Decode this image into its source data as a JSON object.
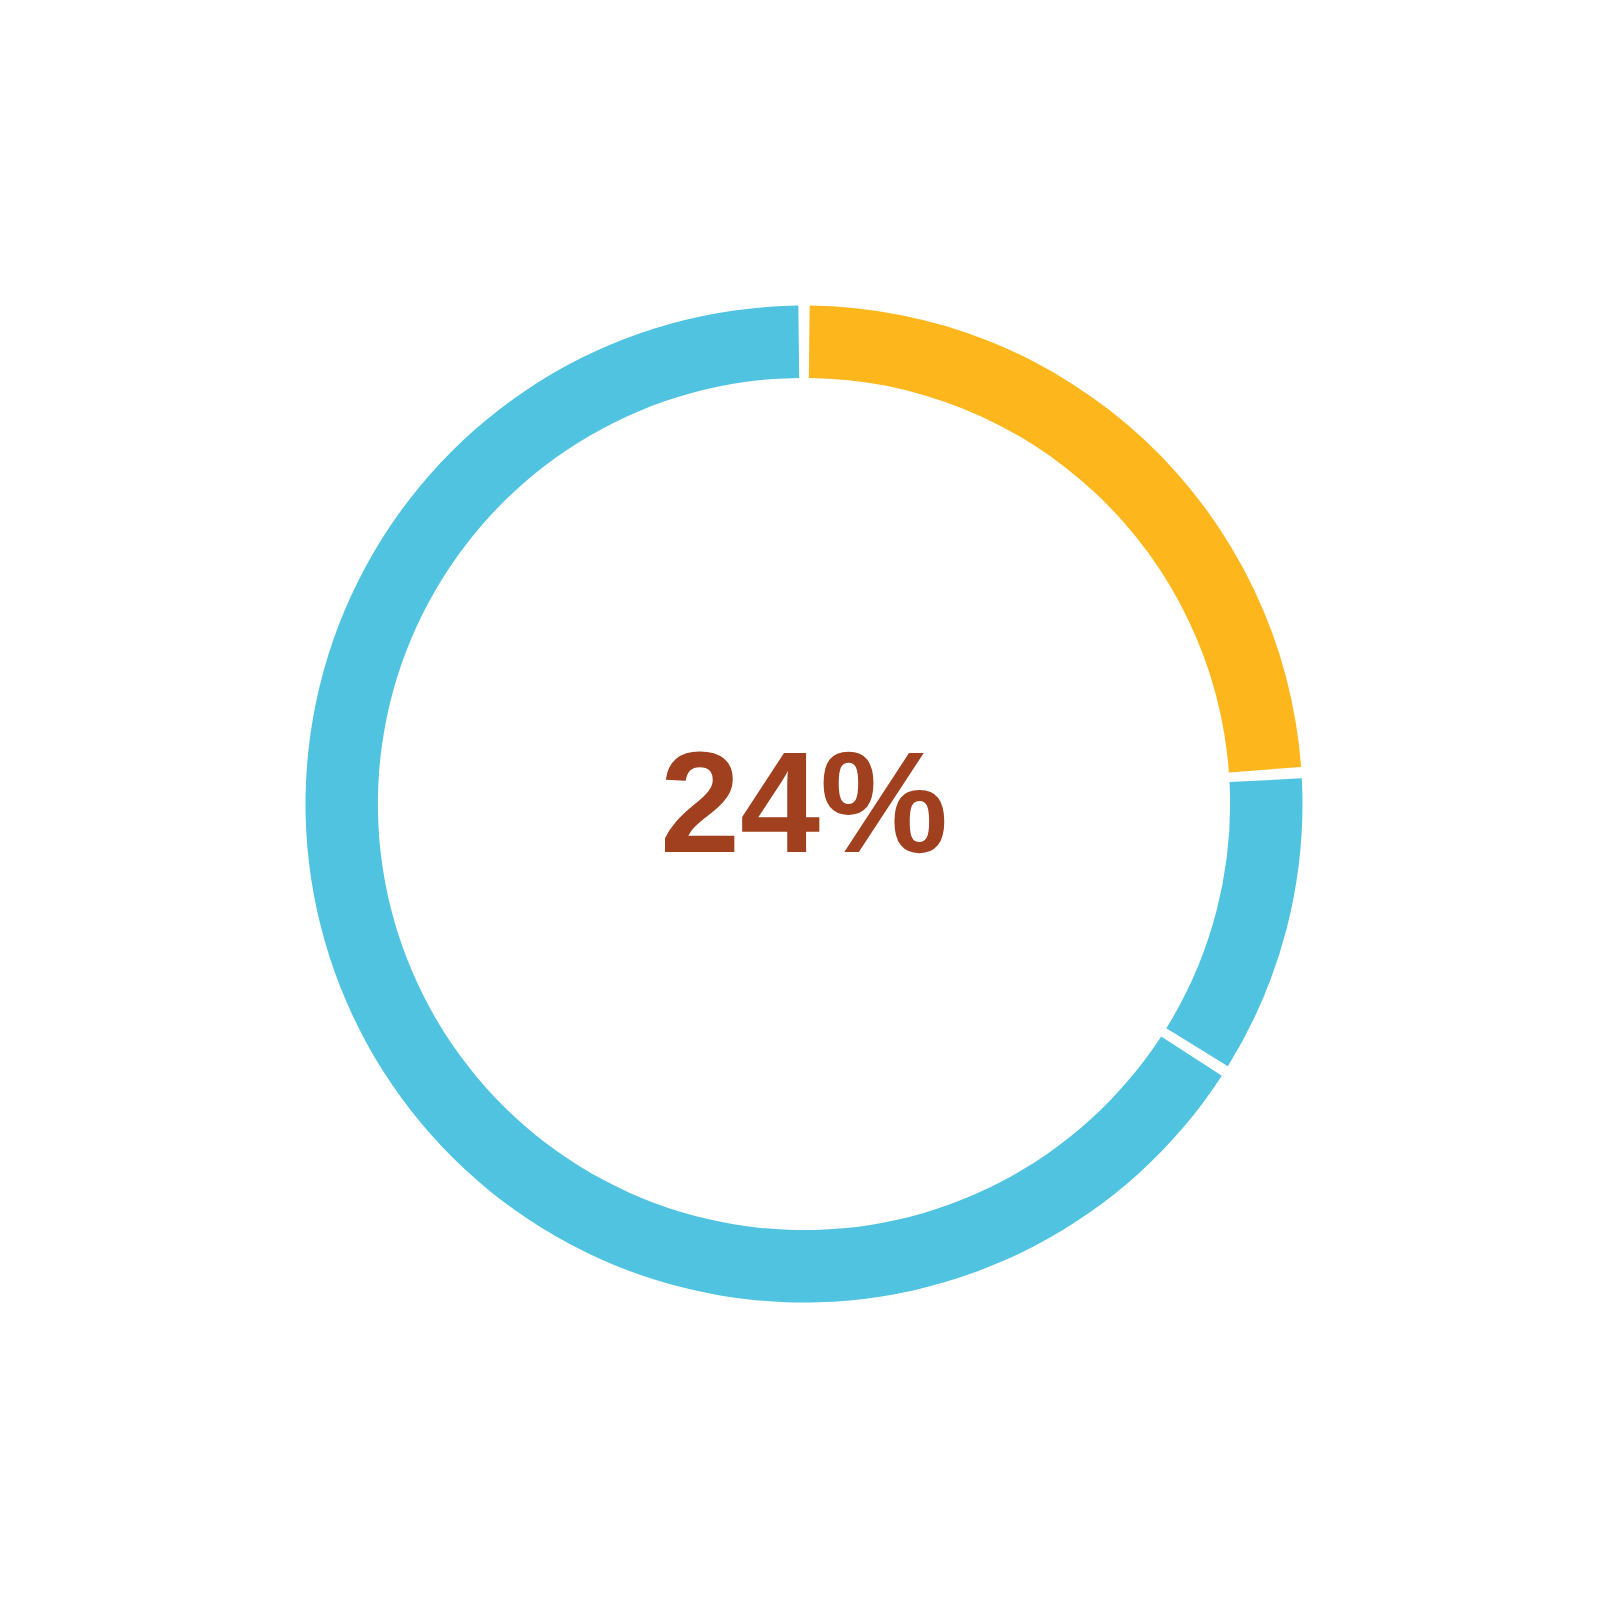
{
  "chart_data": {
    "type": "donut",
    "categories": [
      null,
      null,
      null
    ],
    "values": [
      24,
      10,
      66
    ],
    "colors": [
      "#fdb71c",
      "#4fc3e0",
      "#4fc3e0"
    ],
    "annotations": [
      "24%"
    ]
  }
}
